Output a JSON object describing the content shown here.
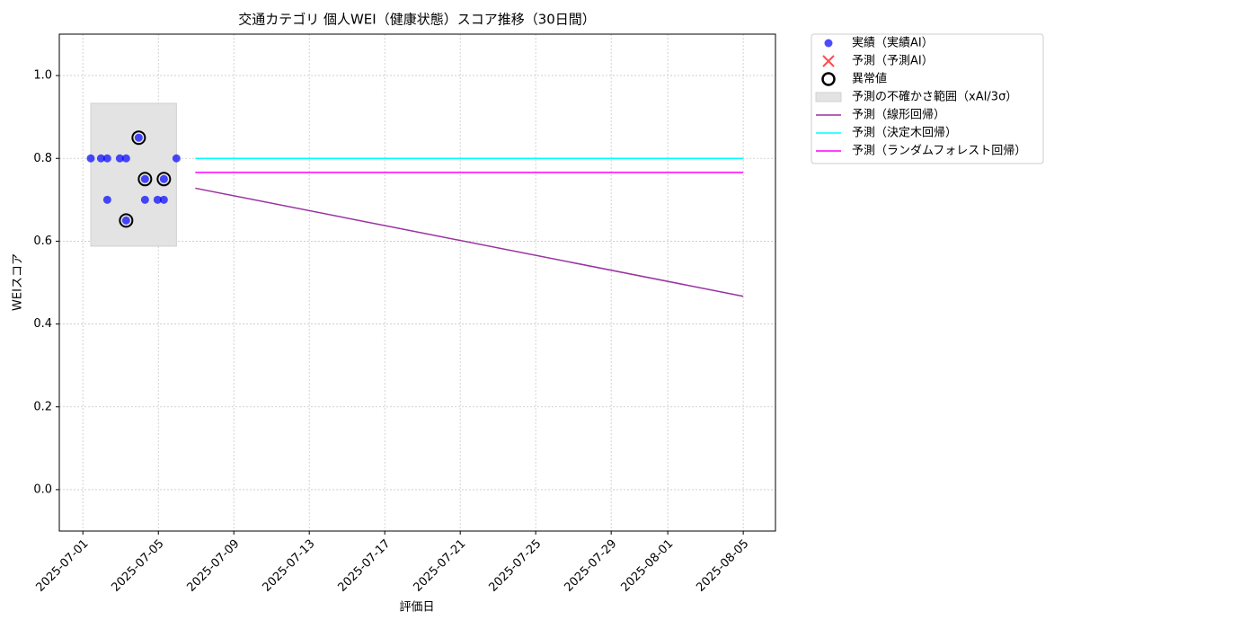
{
  "chart_data": {
    "type": "line",
    "title": "交通カテゴリ 個人WEI（健康状態）スコア推移（30日間）",
    "x_label": "評価日",
    "y_label": "WEIスコア",
    "xlim": [
      "2025-06-29T18:00",
      "2025-08-06T17:00"
    ],
    "ylim": [
      -0.1,
      1.1
    ],
    "xticks": [
      "2025-07-01",
      "2025-07-05",
      "2025-07-09",
      "2025-07-13",
      "2025-07-17",
      "2025-07-21",
      "2025-07-25",
      "2025-07-29",
      "2025-08-01",
      "2025-08-05"
    ],
    "yticks": [
      {
        "value": 0,
        "label": "0.0"
      },
      0.2,
      0.4,
      0.6,
      0.8,
      {
        "value": 1,
        "label": "1.0"
      }
    ],
    "grid": true,
    "legend": "outside-upper-right",
    "series": [
      {
        "name": "実績（実績AI）",
        "kind": "scatter",
        "color": "#0000ff",
        "x": [
          "2025-07-01T10:00",
          "2025-07-01T23:00",
          "2025-07-02T07:00",
          "2025-07-02T07:00",
          "2025-07-02T23:00",
          "2025-07-03T07:00",
          "2025-07-03T07:00",
          "2025-07-03T23:00",
          "2025-07-04T07:00",
          "2025-07-04T07:00",
          "2025-07-04T23:00",
          "2025-07-05T07:00",
          "2025-07-05T07:00",
          "2025-07-05T23:00"
        ],
        "values": [
          0.8,
          0.8,
          0.8,
          0.7,
          0.8,
          0.8,
          0.65,
          0.85,
          0.75,
          0.7,
          0.7,
          0.75,
          0.7,
          0.8
        ]
      },
      {
        "name": "予測（予測AI）",
        "kind": "cross",
        "color": "#ff0000",
        "x": [],
        "values": []
      },
      {
        "name": "異常値",
        "kind": "ring",
        "color": "#000000",
        "x": [
          "2025-07-03T07:00",
          "2025-07-03T23:00",
          "2025-07-04T07:00",
          "2025-07-05T07:00"
        ],
        "values": [
          0.65,
          0.85,
          0.75,
          0.75
        ]
      },
      {
        "name": "予測の不確かさ範囲（xAI/3σ）",
        "kind": "band",
        "color": "#d9d9d9",
        "x": [
          "2025-07-01T10:00",
          "2025-07-05T23:00"
        ],
        "lower": [
          0.588,
          0.588
        ],
        "upper": [
          0.933,
          0.933
        ]
      },
      {
        "name": "予測（線形回帰）",
        "kind": "line",
        "color": "#9932a0",
        "x": [
          "2025-07-06T23:00",
          "2025-08-05T00:00"
        ],
        "values": [
          0.728,
          0.467
        ]
      },
      {
        "name": "予測（決定木回帰）",
        "kind": "line",
        "color": "#00ffff",
        "x": [
          "2025-07-06T23:00",
          "2025-08-05T00:00"
        ],
        "values": [
          0.8,
          0.8
        ]
      },
      {
        "name": "予測（ランダムフォレスト回帰）",
        "kind": "line",
        "color": "#ff00ff",
        "x": [
          "2025-07-06T23:00",
          "2025-08-05T00:00"
        ],
        "values": [
          0.766,
          0.766
        ]
      }
    ]
  }
}
